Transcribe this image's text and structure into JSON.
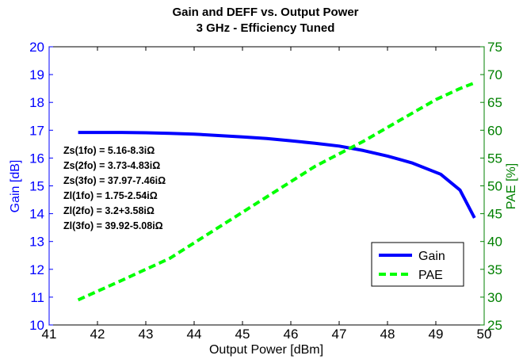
{
  "chart_data": {
    "type": "line",
    "title": "Gain and DEFF vs. Output Power",
    "subtitle": "3 GHz - Efficiency Tuned",
    "xlabel": "Output Power [dBm]",
    "ylabel_left": "Gain [dB]",
    "ylabel_right": "PAE [%]",
    "xlim": [
      41,
      50
    ],
    "ylim_left": [
      10,
      20
    ],
    "ylim_right": [
      25,
      75
    ],
    "x_ticks": [
      "41",
      "42",
      "43",
      "44",
      "45",
      "46",
      "47",
      "48",
      "49",
      "50"
    ],
    "y_left_ticks": [
      "10",
      "11",
      "12",
      "13",
      "14",
      "15",
      "16",
      "17",
      "18",
      "19",
      "20"
    ],
    "y_right_ticks": [
      "25",
      "30",
      "35",
      "40",
      "45",
      "50",
      "55",
      "60",
      "65",
      "70",
      "75"
    ],
    "grid": false,
    "legend_position": "lower-right",
    "series": [
      {
        "name": "Gain",
        "axis": "left",
        "color": "#0000ff",
        "style": "solid",
        "x": [
          41.6,
          42.0,
          42.5,
          43.0,
          43.5,
          44.0,
          44.5,
          45.0,
          45.5,
          46.0,
          46.5,
          47.0,
          47.5,
          48.0,
          48.5,
          49.1,
          49.5,
          49.8
        ],
        "values": [
          16.92,
          16.92,
          16.92,
          16.91,
          16.89,
          16.86,
          16.81,
          16.76,
          16.7,
          16.62,
          16.53,
          16.43,
          16.27,
          16.07,
          15.83,
          15.42,
          14.85,
          13.85
        ]
      },
      {
        "name": "PAE",
        "axis": "right",
        "color": "#00ff00",
        "style": "dashed",
        "x": [
          41.6,
          42.5,
          43.5,
          44.5,
          45.5,
          46.5,
          47.5,
          48.5,
          49.0,
          49.5,
          49.8
        ],
        "values": [
          29.5,
          33.0,
          37.0,
          42.5,
          48.0,
          53.5,
          58.0,
          63.0,
          65.5,
          67.5,
          68.5
        ]
      }
    ],
    "annotations": [
      "Zs(1fo) = 5.16-8.3iΩ",
      "Zs(2fo) = 3.73-4.83iΩ",
      "Zs(3fo) = 37.97-7.46iΩ",
      "Zl(1fo) = 1.75-2.54iΩ",
      "Zl(2fo) = 3.2+3.58iΩ",
      "Zl(3fo) = 39.92-5.08iΩ"
    ]
  }
}
